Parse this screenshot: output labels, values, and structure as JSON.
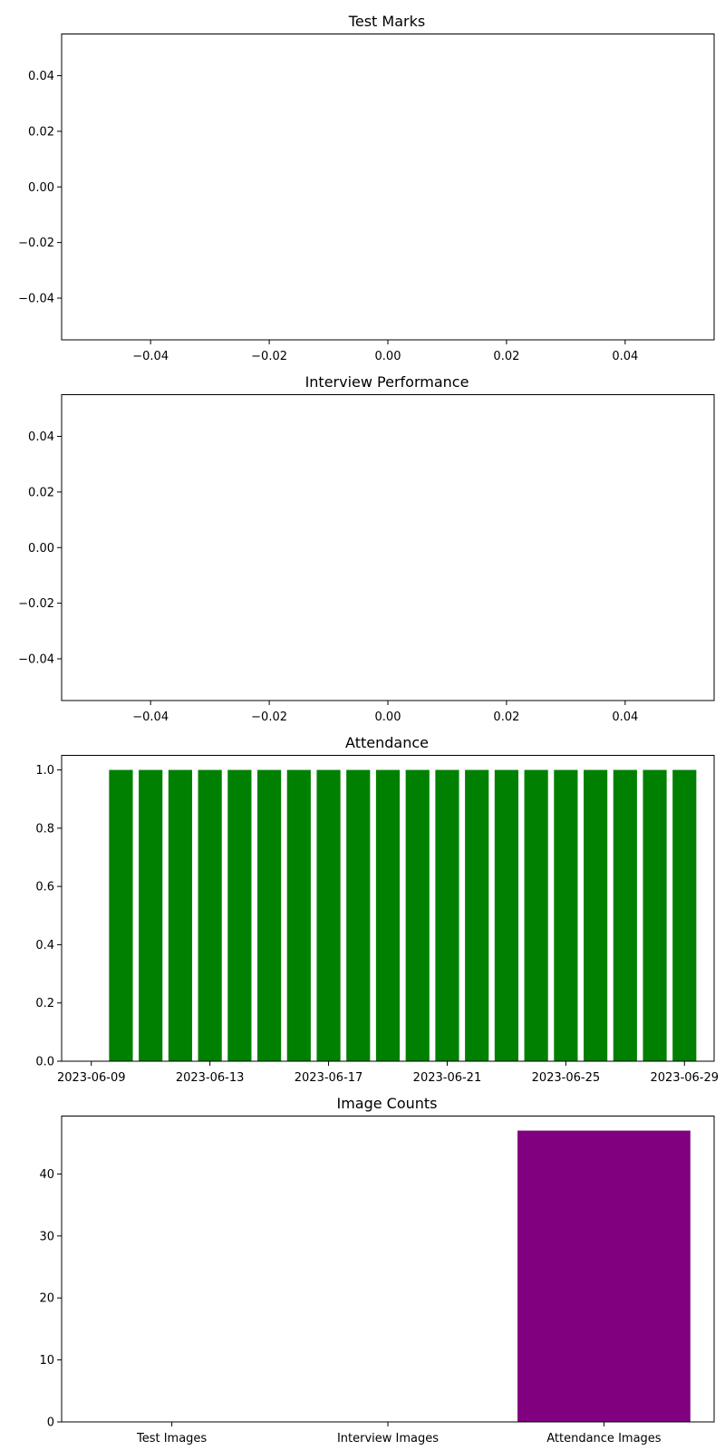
{
  "chart_data": [
    {
      "type": "scatter",
      "title": "Test Marks",
      "xlabel": "",
      "ylabel": "",
      "xlim": [
        -0.055,
        0.055
      ],
      "ylim": [
        -0.055,
        0.055
      ],
      "x_ticks": [
        -0.04,
        -0.02,
        0.0,
        0.02,
        0.04
      ],
      "x_tick_labels": [
        "−0.04",
        "−0.02",
        "0.00",
        "0.02",
        "0.04"
      ],
      "y_ticks": [
        -0.04,
        -0.02,
        0.0,
        0.02,
        0.04
      ],
      "y_tick_labels": [
        "−0.04",
        "−0.02",
        "0.00",
        "0.02",
        "0.04"
      ],
      "series": [],
      "grid": false
    },
    {
      "type": "scatter",
      "title": "Interview Performance",
      "xlabel": "",
      "ylabel": "",
      "xlim": [
        -0.055,
        0.055
      ],
      "ylim": [
        -0.055,
        0.055
      ],
      "x_ticks": [
        -0.04,
        -0.02,
        0.0,
        0.02,
        0.04
      ],
      "x_tick_labels": [
        "−0.04",
        "−0.02",
        "0.00",
        "0.02",
        "0.04"
      ],
      "y_ticks": [
        -0.04,
        -0.02,
        0.0,
        0.02,
        0.04
      ],
      "y_tick_labels": [
        "−0.04",
        "−0.02",
        "0.00",
        "0.02",
        "0.04"
      ],
      "series": [],
      "grid": false
    },
    {
      "type": "bar",
      "title": "Attendance",
      "xlabel": "",
      "ylabel": "",
      "x_type": "date",
      "xlim": [
        "2023-06-08",
        "2023-06-30"
      ],
      "ylim": [
        0,
        1.05
      ],
      "x": [
        "2023-06-10",
        "2023-06-11",
        "2023-06-12",
        "2023-06-13",
        "2023-06-14",
        "2023-06-15",
        "2023-06-16",
        "2023-06-17",
        "2023-06-18",
        "2023-06-19",
        "2023-06-20",
        "2023-06-21",
        "2023-06-22",
        "2023-06-23",
        "2023-06-24",
        "2023-06-25",
        "2023-06-26",
        "2023-06-27",
        "2023-06-28",
        "2023-06-29"
      ],
      "values": [
        1,
        1,
        1,
        1,
        1,
        1,
        1,
        1,
        1,
        1,
        1,
        1,
        1,
        1,
        1,
        1,
        1,
        1,
        1,
        1
      ],
      "bar_width_days": 0.8,
      "x_ticks": [
        "2023-06-09",
        "2023-06-13",
        "2023-06-17",
        "2023-06-21",
        "2023-06-25",
        "2023-06-29"
      ],
      "y_ticks": [
        0.0,
        0.2,
        0.4,
        0.6,
        0.8,
        1.0
      ],
      "y_tick_labels": [
        "0.0",
        "0.2",
        "0.4",
        "0.6",
        "0.8",
        "1.0"
      ],
      "color": "#008000",
      "grid": false
    },
    {
      "type": "bar",
      "title": "Image Counts",
      "xlabel": "",
      "ylabel": "",
      "categories": [
        "Test Images",
        "Interview Images",
        "Attendance Images"
      ],
      "values": [
        0,
        0,
        47
      ],
      "ylim": [
        0,
        49.35
      ],
      "y_ticks": [
        0,
        10,
        20,
        30,
        40
      ],
      "y_tick_labels": [
        "0",
        "10",
        "20",
        "30",
        "40"
      ],
      "color": "#800080",
      "grid": false
    }
  ]
}
